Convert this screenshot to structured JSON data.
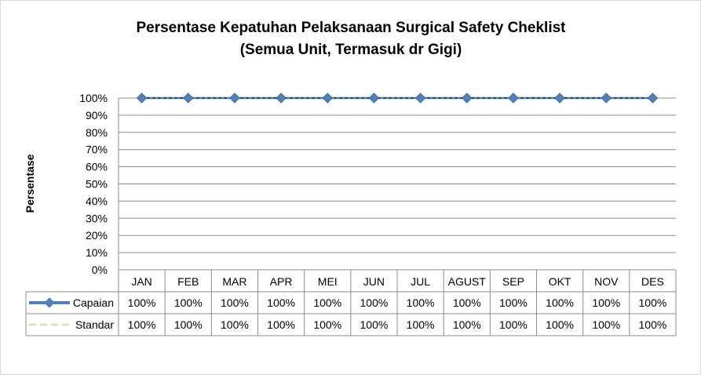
{
  "chart_data": {
    "type": "line",
    "title": "Persentase Kepatuhan Pelaksanaan Surgical Safety Cheklist",
    "subtitle": "(Semua Unit, Termasuk dr Gigi)",
    "ylabel": "Persentase",
    "xlabel": "",
    "ylim": [
      0,
      100
    ],
    "yticks": [
      0,
      10,
      20,
      30,
      40,
      50,
      60,
      70,
      80,
      90,
      100
    ],
    "ytick_suffix": "%",
    "grid": true,
    "legend": "data-table",
    "categories": [
      "JAN",
      "FEB",
      "MAR",
      "APR",
      "MEI",
      "JUN",
      "JUL",
      "AGUST",
      "SEP",
      "OKT",
      "NOV",
      "DES"
    ],
    "series": [
      {
        "name": "Capaian",
        "values": [
          100,
          100,
          100,
          100,
          100,
          100,
          100,
          100,
          100,
          100,
          100,
          100
        ],
        "labels": [
          "100%",
          "100%",
          "100%",
          "100%",
          "100%",
          "100%",
          "100%",
          "100%",
          "100%",
          "100%",
          "100%",
          "100%"
        ],
        "color": "#4f81bd",
        "marker": "diamond"
      },
      {
        "name": "Standar",
        "values": [
          100,
          100,
          100,
          100,
          100,
          100,
          100,
          100,
          100,
          100,
          100,
          100
        ],
        "labels": [
          "100%",
          "100%",
          "100%",
          "100%",
          "100%",
          "100%",
          "100%",
          "100%",
          "100%",
          "100%",
          "100%",
          "100%"
        ],
        "color": "#d7e4bd",
        "dash": "dashed"
      }
    ]
  }
}
